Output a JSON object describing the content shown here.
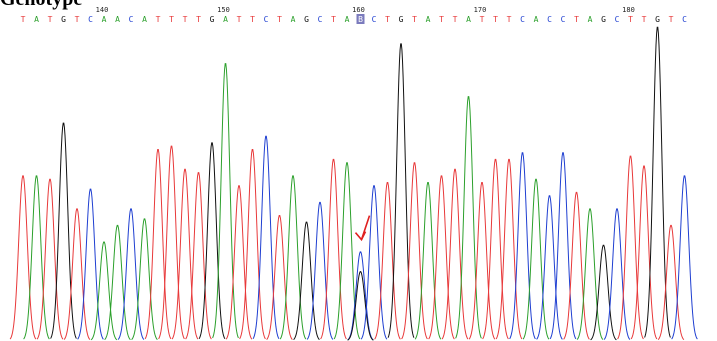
{
  "page": {
    "heading": "Genotype"
  },
  "sequence": {
    "bases": [
      "T",
      "A",
      "T",
      "G",
      "T",
      "C",
      "A",
      "A",
      "C",
      "A",
      "T",
      "T",
      "T",
      "T",
      "G",
      "A",
      "T",
      "T",
      "C",
      "T",
      "A",
      "G",
      "C",
      "T",
      "A",
      "B",
      "C",
      "T",
      "G",
      "T",
      "A",
      "T",
      "T",
      "A",
      "T",
      "T",
      "T",
      "C",
      "A",
      "C",
      "C",
      "T",
      "A",
      "G",
      "C",
      "T",
      "T",
      "G",
      "T",
      "C"
    ],
    "position_labels": [
      {
        "text": "140",
        "base_index": 6
      },
      {
        "text": "150",
        "base_index": 15
      },
      {
        "text": "160",
        "base_index": 25
      },
      {
        "text": "170",
        "base_index": 34
      },
      {
        "text": "180",
        "base_index": 45
      }
    ],
    "highlighted_base_index": 25,
    "ambiguous_mark": "B"
  },
  "colors": {
    "A": "#2ca02c",
    "C": "#1f3fd1",
    "G": "#111111",
    "T": "#e8393a",
    "highlight_fill": "#7b7bbd",
    "arrow": "#e02020"
  },
  "chart_data": {
    "type": "line",
    "title": "",
    "xlabel": "",
    "ylabel": "",
    "ylim": [
      0,
      1
    ],
    "peaks": [
      {
        "base": "T",
        "h": 0.5
      },
      {
        "base": "A",
        "h": 0.5
      },
      {
        "base": "T",
        "h": 0.49
      },
      {
        "base": "G",
        "h": 0.66
      },
      {
        "base": "T",
        "h": 0.4
      },
      {
        "base": "C",
        "h": 0.46
      },
      {
        "base": "A",
        "h": 0.3
      },
      {
        "base": "A",
        "h": 0.35
      },
      {
        "base": "C",
        "h": 0.4
      },
      {
        "base": "A",
        "h": 0.37
      },
      {
        "base": "T",
        "h": 0.58
      },
      {
        "base": "T",
        "h": 0.59
      },
      {
        "base": "T",
        "h": 0.52
      },
      {
        "base": "T",
        "h": 0.51
      },
      {
        "base": "G",
        "h": 0.6
      },
      {
        "base": "A",
        "h": 0.84
      },
      {
        "base": "T",
        "h": 0.47
      },
      {
        "base": "T",
        "h": 0.58
      },
      {
        "base": "C",
        "h": 0.62
      },
      {
        "base": "T",
        "h": 0.38
      },
      {
        "base": "A",
        "h": 0.5
      },
      {
        "base": "G",
        "h": 0.36
      },
      {
        "base": "C",
        "h": 0.42
      },
      {
        "base": "T",
        "h": 0.55
      },
      {
        "base": "A",
        "h": 0.54
      },
      {
        "base": "C",
        "h": 0.27,
        "second": {
          "base": "G",
          "h": 0.21
        }
      },
      {
        "base": "C",
        "h": 0.47
      },
      {
        "base": "T",
        "h": 0.48
      },
      {
        "base": "G",
        "h": 0.9
      },
      {
        "base": "T",
        "h": 0.54
      },
      {
        "base": "A",
        "h": 0.48
      },
      {
        "base": "T",
        "h": 0.5
      },
      {
        "base": "T",
        "h": 0.52
      },
      {
        "base": "A",
        "h": 0.74
      },
      {
        "base": "T",
        "h": 0.48
      },
      {
        "base": "T",
        "h": 0.55
      },
      {
        "base": "T",
        "h": 0.55
      },
      {
        "base": "C",
        "h": 0.57
      },
      {
        "base": "A",
        "h": 0.49
      },
      {
        "base": "C",
        "h": 0.44
      },
      {
        "base": "C",
        "h": 0.57
      },
      {
        "base": "T",
        "h": 0.45
      },
      {
        "base": "A",
        "h": 0.4
      },
      {
        "base": "G",
        "h": 0.29
      },
      {
        "base": "C",
        "h": 0.4
      },
      {
        "base": "T",
        "h": 0.56
      },
      {
        "base": "T",
        "h": 0.53
      },
      {
        "base": "G",
        "h": 0.95
      },
      {
        "base": "T",
        "h": 0.35
      },
      {
        "base": "C",
        "h": 0.5
      }
    ]
  }
}
